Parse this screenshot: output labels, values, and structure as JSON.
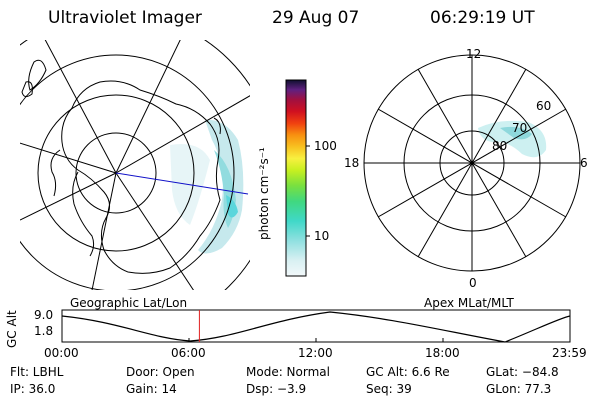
{
  "header": {
    "instrument": "Ultraviolet Imager",
    "date": "29 Aug 07",
    "time": "06:29:19 UT"
  },
  "colorbar": {
    "unit_label": "photon cm⁻²s⁻¹",
    "ticks": [
      "100",
      "10"
    ]
  },
  "polar_plot": {
    "mlt_labels": [
      "12",
      "18",
      "6",
      "0"
    ],
    "mlat_labels": [
      "60",
      "70",
      "80"
    ]
  },
  "timeline": {
    "left_title": "Geographic Lat/Lon",
    "right_title": "Apex MLat/MLT",
    "ylabel": "GC Alt",
    "ymax_label": "9.0",
    "ymin_label": "1.8",
    "x_ticks": [
      "00:00",
      "06:00",
      "12:00",
      "18:00",
      "23:59"
    ],
    "current_hour": 6.49
  },
  "info": {
    "flt": "Flt: LBHL",
    "door": "Door: Open",
    "mode": "Mode: Normal",
    "gc_alt": "GC Alt: 6.6 Re",
    "glat": "GLat: −84.8",
    "ip": "IP: 36.0",
    "gain": "Gain: 14",
    "dsp": "Dsp:    −3.9",
    "seq": "Seq: 39",
    "glon": "GLon:  77.3"
  },
  "colors": {
    "track_line": "#1010c8",
    "time_marker": "#e02020",
    "aurora": "#a8e0e8"
  }
}
